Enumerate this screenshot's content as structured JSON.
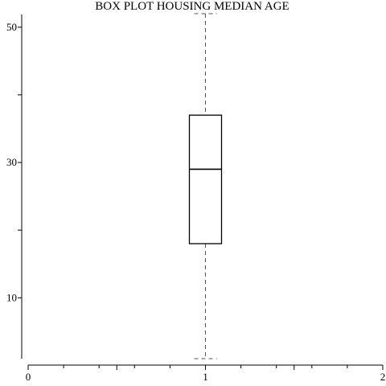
{
  "chart_data": {
    "type": "box",
    "title": "BOX PLOT HOUSING MEDIAN AGE",
    "xlabel": "",
    "ylabel": "",
    "xlim": [
      0,
      2
    ],
    "ylim": [
      1,
      52
    ],
    "x_ticks": [
      0,
      0.5,
      1,
      1.5,
      2
    ],
    "x_tick_labels": [
      "0",
      "",
      "1",
      "",
      "2"
    ],
    "x_minor_step": 0.2,
    "y_ticks": [
      10,
      20,
      30,
      40,
      50
    ],
    "y_tick_labels": [
      "10",
      "",
      "30",
      "",
      "50"
    ],
    "grid": false,
    "series": [
      {
        "x": 1,
        "whisker_low": 1,
        "q1": 18,
        "median": 29,
        "q3": 37,
        "whisker_high": 52
      }
    ]
  }
}
